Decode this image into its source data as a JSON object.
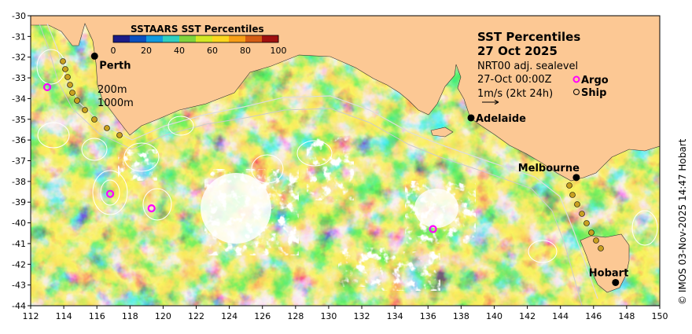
{
  "map": {
    "lon_range": [
      112,
      150
    ],
    "lat_range": [
      -44,
      -30
    ],
    "lon_ticks": [
      "112",
      "114",
      "116",
      "118",
      "120",
      "122",
      "124",
      "126",
      "128",
      "130",
      "132",
      "134",
      "136",
      "138",
      "140",
      "142",
      "144",
      "146",
      "148",
      "150"
    ],
    "lat_ticks": [
      "-30",
      "-31",
      "-32",
      "-33",
      "-34",
      "-35",
      "-36",
      "-37",
      "-38",
      "-39",
      "-40",
      "-41",
      "-42",
      "-43",
      "-44"
    ],
    "land_color": "#fcc894",
    "ocean_palette": [
      "#2b2fa6",
      "#0a61c8",
      "#1ea0e6",
      "#38c6a8",
      "#8dd64a",
      "#e8e62c",
      "#f7a21c",
      "#d6601e",
      "#a81c12"
    ]
  },
  "colorbar": {
    "title": "SSTAARS SST Percentiles",
    "ticks": [
      "0",
      "20",
      "40",
      "60",
      "80",
      "100"
    ],
    "colors": [
      "#1b1c88",
      "#0a4fc0",
      "#109ae0",
      "#2fcfc0",
      "#7fd43c",
      "#d2e824",
      "#fbd61e",
      "#f79e16",
      "#d45c14",
      "#a01010"
    ]
  },
  "info": {
    "title_line1": "SST Percentiles",
    "title_line2": "27 Oct 2025",
    "line3": "NRT00 adj. sealevel",
    "line4": "27-Oct 00:00Z",
    "line5": "1m/s (2kt 24h)",
    "argo_label": "Argo",
    "ship_label": "Ship",
    "argo_color": "#ff00ff"
  },
  "depth_labels": {
    "d200": "200m",
    "d1000": "1000m"
  },
  "cities": [
    {
      "name": "Perth",
      "lon": 115.86,
      "lat": -31.95
    },
    {
      "name": "Adelaide",
      "lon": 138.6,
      "lat": -34.93
    },
    {
      "name": "Melbourne",
      "lon": 144.96,
      "lat": -37.81
    },
    {
      "name": "Hobart",
      "lon": 147.33,
      "lat": -42.88
    }
  ],
  "argo_floats": [
    {
      "lon": 113.0,
      "lat": -33.45
    },
    {
      "lon": 116.8,
      "lat": -38.6
    },
    {
      "lon": 119.3,
      "lat": -39.3
    },
    {
      "lon": 136.3,
      "lat": -40.3
    }
  ],
  "credit": "© IMOS 03-Nov-2025 14:47 Hobart"
}
